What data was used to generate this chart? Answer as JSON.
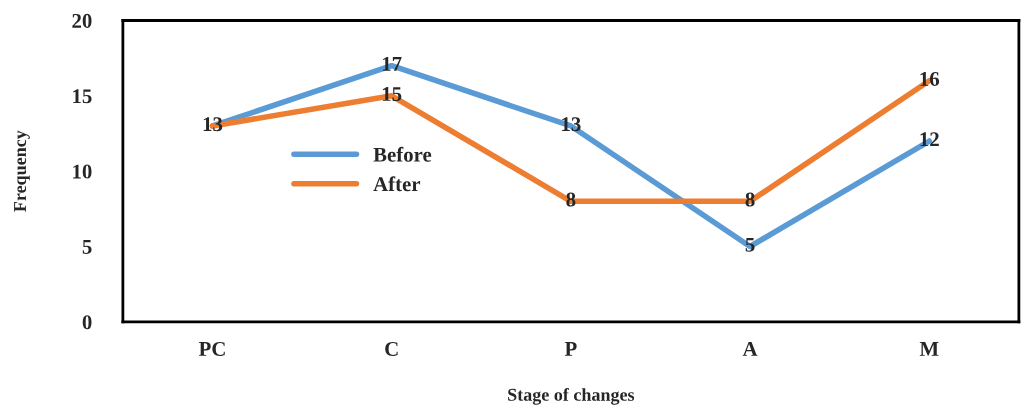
{
  "chart_data": {
    "type": "line",
    "xlabel": "Stage of changes",
    "ylabel": "Frequency",
    "categories": [
      "PC",
      "C",
      "P",
      "A",
      "M"
    ],
    "series": [
      {
        "name": "Before",
        "color": "#5b9bd5",
        "values": [
          13,
          17,
          13,
          5,
          12
        ],
        "value_labels": [
          "13",
          "17",
          "13",
          "5",
          "12"
        ]
      },
      {
        "name": "After",
        "color": "#ed7d31",
        "values": [
          13,
          15,
          8,
          8,
          16
        ],
        "value_labels": [
          null,
          "15",
          "8",
          "8",
          "16"
        ]
      }
    ],
    "ylim": [
      0,
      20
    ],
    "yticks": [
      0,
      5,
      10,
      15,
      20
    ],
    "grid": false,
    "legend": "left",
    "marker": "none",
    "line_style": "solid"
  }
}
